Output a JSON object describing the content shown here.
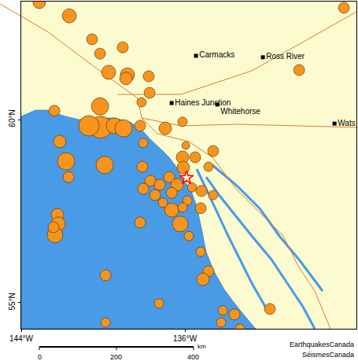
{
  "chart_data": {
    "type": "scatter",
    "color": "#f7941d",
    "grid": false,
    "xlim": [
      -144,
      -127.62
    ],
    "ylim": [
      54.29,
      63.22
    ],
    "xticks": [
      {
        "value": -144,
        "label": "144°W"
      },
      {
        "value": -136,
        "label": "136°W"
      }
    ],
    "yticks": [
      {
        "value": 55,
        "label": "55°N"
      },
      {
        "value": 60,
        "label": "60°N"
      }
    ],
    "x": [
      -143.12,
      -141.65,
      -140.54,
      -140.15,
      -139.04,
      -139.73,
      -138.81,
      -138.88,
      -137.77,
      -137.73,
      -138.12,
      -128.23,
      -130.42,
      -142.38,
      -140.15,
      -140.12,
      -140.69,
      -139.46,
      -139.0,
      -138.19,
      -136.96,
      -136.12,
      -138.04,
      -135.96,
      -142.12,
      -141.81,
      -139.92,
      -141.69,
      -138.08,
      -137.69,
      -136.12,
      -135.5,
      -134.62,
      -136.08,
      -134.85,
      -136.77,
      -137.23,
      -136.38,
      -135.65,
      -135.19,
      -137.46,
      -138.04,
      -136.65,
      -135.88,
      -136.65,
      -136.12,
      -135.23,
      -134.62,
      -137.08,
      -136.23,
      -135.81,
      -138.19,
      -142.23,
      -142.19,
      -142.35,
      -142.42,
      -135.23,
      -139.88,
      -134.85,
      -135.12,
      -137.27,
      -134.15,
      -133.58,
      -134.23,
      -133.31,
      -131.85,
      -139.88
    ],
    "values": [
      63.2,
      62.83,
      62.19,
      61.8,
      61.97,
      61.29,
      61.22,
      61.12,
      61.18,
      60.73,
      60.47,
      63.05,
      61.35,
      60.24,
      60.36,
      59.79,
      59.83,
      59.83,
      59.76,
      59.83,
      59.76,
      59.94,
      59.36,
      59.29,
      59.4,
      58.86,
      58.76,
      58.43,
      58.71,
      58.33,
      58.97,
      58.97,
      59.14,
      58.69,
      58.71,
      58.43,
      58.22,
      58.22,
      58.15,
      58.05,
      57.94,
      58.11,
      58.0,
      57.79,
      57.53,
      57.6,
      57.58,
      57.94,
      57.73,
      57.15,
      56.82,
      57.19,
      57.4,
      57.15,
      56.85,
      57.06,
      56.39,
      55.75,
      55.86,
      55.64,
      54.98,
      54.79,
      54.68,
      54.46,
      54.29,
      54.83,
      54.46
    ],
    "size": [
      4.2,
      4.6,
      3.8,
      3.8,
      3.8,
      4.6,
      4.6,
      4.2,
      3.8,
      3.8,
      3.4,
      3.8,
      3.8,
      3.8,
      5.4,
      6.6,
      6.2,
      5.0,
      5.4,
      3.8,
      4.2,
      3.4,
      3.4,
      3.0,
      4.2,
      5.4,
      5.4,
      3.8,
      3.8,
      3.8,
      4.2,
      3.8,
      3.8,
      4.2,
      3.4,
      3.8,
      3.8,
      4.2,
      3.4,
      3.8,
      3.8,
      3.8,
      3.8,
      3.4,
      4.6,
      3.4,
      3.8,
      3.4,
      3.4,
      5.0,
      3.4,
      3.8,
      4.2,
      4.6,
      5.0,
      3.8,
      3.4,
      3.8,
      3.8,
      4.2,
      3.4,
      3.4,
      3.8,
      3.4,
      3.4,
      3.8,
      3.4
    ],
    "places": [
      {
        "label": "Carmacks",
        "x": -135.46,
        "y": 61.74
      },
      {
        "label": "Ross River",
        "x": -132.19,
        "y": 61.7
      },
      {
        "label": "Haines Junction",
        "x": -136.65,
        "y": 60.45
      },
      {
        "label": "Whitehorse",
        "x": -134.42,
        "y": 60.41
      },
      {
        "label": "Wats",
        "x": -128.69,
        "y": 59.89
      }
    ],
    "epicenter": {
      "x": -135.92,
      "y": 58.41,
      "color": "#ff0000",
      "marker": "star"
    },
    "scale_bar": {
      "ticks": [
        0,
        200,
        400
      ],
      "unit": "km"
    },
    "credit": [
      "EarthquakesCanada",
      "SéismesCanada"
    ]
  }
}
